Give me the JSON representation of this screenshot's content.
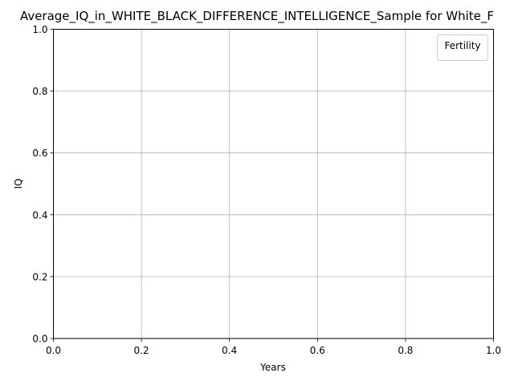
{
  "chart_data": {
    "type": "line",
    "title": "Average_IQ_in_WHITE_BLACK_DIFFERENCE_INTELLIGENCE_Sample for White_F",
    "xlabel": "Years",
    "ylabel": "IQ",
    "xlim": [
      0.0,
      1.0
    ],
    "ylim": [
      0.0,
      1.0
    ],
    "xticks": [
      "0.0",
      "0.2",
      "0.4",
      "0.6",
      "0.8",
      "1.0"
    ],
    "yticks": [
      "0.0",
      "0.2",
      "0.4",
      "0.6",
      "0.8",
      "1.0"
    ],
    "grid": true,
    "legend": {
      "title": "Fertility",
      "placement": "top-right",
      "entries": []
    },
    "series": []
  },
  "colors": {
    "grid": "#b0b0b0",
    "axis": "#000000",
    "background": "#ffffff"
  }
}
